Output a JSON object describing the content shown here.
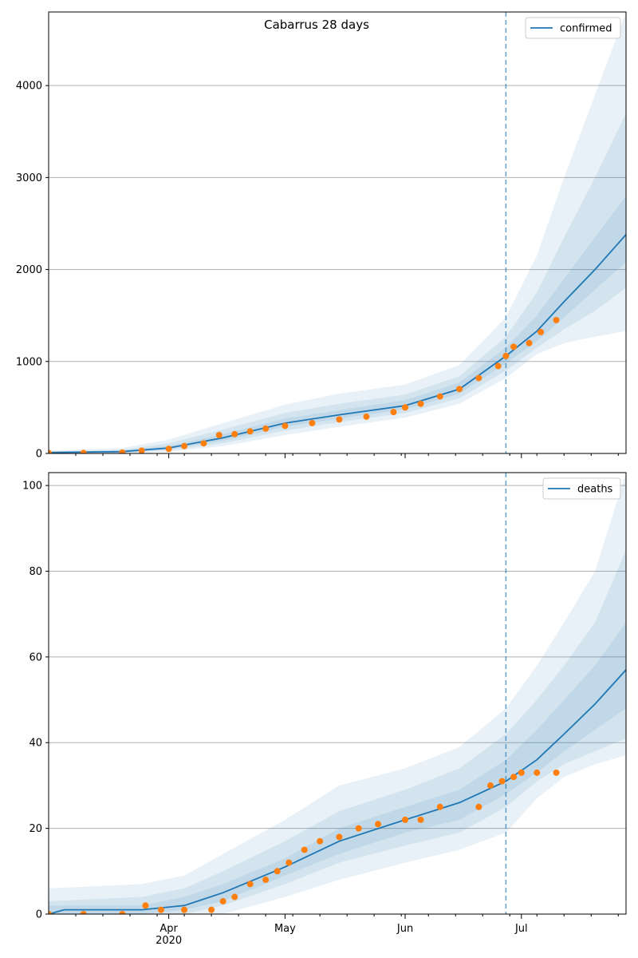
{
  "figure": {
    "title": "Cabarrus 28 days"
  },
  "colors": {
    "model_line": "#1f77b4",
    "observed_points": "#ff7f0e",
    "band": "#1f77b4",
    "grid": "#b0b0b0",
    "divider": "#1f77b4"
  },
  "x_axis": {
    "start": "2020-03-01",
    "end": "2020-07-28",
    "divider_date": "2020-06-27",
    "major_ticks": [
      {
        "date": "2020-04-01",
        "label": "Apr",
        "sublabel": "2020"
      },
      {
        "date": "2020-05-01",
        "label": "May",
        "sublabel": ""
      },
      {
        "date": "2020-06-01",
        "label": "Jun",
        "sublabel": ""
      },
      {
        "date": "2020-07-01",
        "label": "Jul",
        "sublabel": ""
      }
    ]
  },
  "chart_data": [
    {
      "type": "line",
      "panel": "confirmed",
      "legend": "confirmed",
      "legend_position": "top-right",
      "grid": "horizontal",
      "ylim": [
        0,
        4800
      ],
      "yticks": [
        0,
        1000,
        2000,
        3000,
        4000
      ],
      "model": {
        "x": [
          "2020-03-01",
          "2020-03-20",
          "2020-04-01",
          "2020-04-15",
          "2020-05-01",
          "2020-05-15",
          "2020-06-01",
          "2020-06-15",
          "2020-06-27",
          "2020-07-05",
          "2020-07-12",
          "2020-07-20",
          "2020-07-28"
        ],
        "y": [
          10,
          20,
          60,
          170,
          330,
          420,
          520,
          700,
          1060,
          1330,
          1650,
          2000,
          2380
        ]
      },
      "bands": [
        {
          "x": [
            "2020-03-01",
            "2020-03-20",
            "2020-04-01",
            "2020-04-15",
            "2020-05-01",
            "2020-05-15",
            "2020-06-01",
            "2020-06-15",
            "2020-06-27",
            "2020-07-05",
            "2020-07-12",
            "2020-07-20",
            "2020-07-28"
          ],
          "lower": [
            0,
            0,
            20,
            80,
            200,
            290,
            390,
            540,
            820,
            1080,
            1200,
            1270,
            1330
          ],
          "upper": [
            30,
            60,
            150,
            330,
            530,
            650,
            750,
            960,
            1480,
            2150,
            3000,
            3900,
            4800
          ]
        },
        {
          "x": [
            "2020-03-01",
            "2020-03-20",
            "2020-04-01",
            "2020-04-15",
            "2020-05-01",
            "2020-05-15",
            "2020-06-01",
            "2020-06-15",
            "2020-06-27",
            "2020-07-05",
            "2020-07-12",
            "2020-07-20",
            "2020-07-28"
          ],
          "lower": [
            0,
            5,
            35,
            110,
            250,
            340,
            440,
            600,
            900,
            1150,
            1350,
            1550,
            1800
          ],
          "upper": [
            20,
            40,
            110,
            260,
            440,
            540,
            640,
            840,
            1270,
            1750,
            2350,
            3000,
            3700
          ]
        },
        {
          "x": [
            "2020-03-01",
            "2020-03-20",
            "2020-04-01",
            "2020-04-15",
            "2020-05-01",
            "2020-05-15",
            "2020-06-01",
            "2020-06-15",
            "2020-06-27",
            "2020-07-05",
            "2020-07-12",
            "2020-07-20",
            "2020-07-28"
          ],
          "lower": [
            5,
            10,
            45,
            140,
            290,
            380,
            480,
            650,
            980,
            1220,
            1480,
            1780,
            2080
          ],
          "upper": [
            15,
            30,
            80,
            210,
            380,
            470,
            580,
            770,
            1150,
            1500,
            1900,
            2350,
            2800
          ]
        }
      ],
      "observed": {
        "x": [
          "2020-03-01",
          "2020-03-10",
          "2020-03-20",
          "2020-03-25",
          "2020-04-01",
          "2020-04-05",
          "2020-04-10",
          "2020-04-14",
          "2020-04-18",
          "2020-04-22",
          "2020-04-26",
          "2020-05-01",
          "2020-05-08",
          "2020-05-15",
          "2020-05-22",
          "2020-05-29",
          "2020-06-01",
          "2020-06-05",
          "2020-06-10",
          "2020-06-15",
          "2020-06-20",
          "2020-06-25",
          "2020-06-27",
          "2020-06-29",
          "2020-07-03",
          "2020-07-06",
          "2020-07-10"
        ],
        "y": [
          5,
          5,
          10,
          30,
          50,
          80,
          110,
          200,
          210,
          240,
          270,
          300,
          330,
          370,
          400,
          450,
          500,
          540,
          620,
          700,
          820,
          950,
          1060,
          1160,
          1200,
          1320,
          1450
        ]
      }
    },
    {
      "type": "line",
      "panel": "deaths",
      "legend": "deaths",
      "legend_position": "top-right",
      "grid": "horizontal",
      "ylim": [
        0,
        103
      ],
      "yticks": [
        0,
        20,
        40,
        60,
        80,
        100
      ],
      "model": {
        "x": [
          "2020-03-01",
          "2020-03-05",
          "2020-03-25",
          "2020-04-05",
          "2020-04-15",
          "2020-05-01",
          "2020-05-15",
          "2020-06-01",
          "2020-06-15",
          "2020-06-27",
          "2020-07-05",
          "2020-07-12",
          "2020-07-20",
          "2020-07-28"
        ],
        "y": [
          0,
          1,
          1,
          2,
          5,
          11,
          17,
          22,
          26,
          31,
          36,
          42,
          49,
          57
        ]
      },
      "bands": [
        {
          "x": [
            "2020-03-01",
            "2020-03-25",
            "2020-04-05",
            "2020-04-15",
            "2020-05-01",
            "2020-05-15",
            "2020-06-01",
            "2020-06-15",
            "2020-06-27",
            "2020-07-05",
            "2020-07-12",
            "2020-07-20",
            "2020-07-28"
          ],
          "lower": [
            0,
            0,
            0,
            0,
            4,
            8,
            12,
            15,
            19,
            27,
            32,
            35,
            37
          ],
          "upper": [
            6,
            7,
            9,
            14,
            22,
            30,
            34,
            39,
            48,
            58,
            68,
            80,
            103
          ]
        },
        {
          "x": [
            "2020-03-01",
            "2020-03-25",
            "2020-04-05",
            "2020-04-15",
            "2020-05-01",
            "2020-05-15",
            "2020-06-01",
            "2020-06-15",
            "2020-06-27",
            "2020-07-05",
            "2020-07-12",
            "2020-07-20",
            "2020-07-28"
          ],
          "lower": [
            0,
            0,
            0,
            2,
            7,
            12,
            16,
            19,
            25,
            31,
            35,
            38,
            41
          ],
          "upper": [
            3,
            4,
            6,
            10,
            17,
            24,
            29,
            34,
            42,
            50,
            58,
            68,
            85
          ]
        },
        {
          "x": [
            "2020-03-01",
            "2020-03-25",
            "2020-04-05",
            "2020-04-15",
            "2020-05-01",
            "2020-05-15",
            "2020-06-01",
            "2020-06-15",
            "2020-06-27",
            "2020-07-05",
            "2020-07-12",
            "2020-07-20",
            "2020-07-28"
          ],
          "lower": [
            0,
            0,
            1,
            3,
            9,
            14,
            19,
            22,
            28,
            33,
            38,
            43,
            48
          ],
          "upper": [
            2,
            2,
            4,
            7,
            13,
            20,
            25,
            29,
            36,
            43,
            50,
            58,
            68
          ]
        }
      ],
      "observed": {
        "x": [
          "2020-03-01",
          "2020-03-10",
          "2020-03-20",
          "2020-03-26",
          "2020-03-30",
          "2020-04-05",
          "2020-04-12",
          "2020-04-15",
          "2020-04-18",
          "2020-04-22",
          "2020-04-26",
          "2020-04-29",
          "2020-05-02",
          "2020-05-06",
          "2020-05-10",
          "2020-05-15",
          "2020-05-20",
          "2020-05-25",
          "2020-06-01",
          "2020-06-05",
          "2020-06-10",
          "2020-06-20",
          "2020-06-23",
          "2020-06-26",
          "2020-06-29",
          "2020-07-01",
          "2020-07-05",
          "2020-07-10"
        ],
        "y": [
          0,
          0,
          0,
          2,
          1,
          1,
          1,
          3,
          4,
          7,
          8,
          10,
          12,
          15,
          17,
          18,
          20,
          21,
          22,
          22,
          25,
          25,
          30,
          31,
          32,
          33,
          33,
          33
        ]
      }
    }
  ]
}
